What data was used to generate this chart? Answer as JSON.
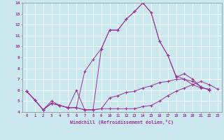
{
  "xlabel": "Windchill (Refroidissement éolien,°C)",
  "background_color": "#cce8ef",
  "line_color": "#993399",
  "xlim": [
    -0.5,
    23.5
  ],
  "ylim": [
    4,
    14
  ],
  "yticks": [
    4,
    5,
    6,
    7,
    8,
    9,
    10,
    11,
    12,
    13,
    14
  ],
  "xticks": [
    0,
    1,
    2,
    3,
    4,
    5,
    6,
    7,
    8,
    9,
    10,
    11,
    12,
    13,
    14,
    15,
    16,
    17,
    18,
    19,
    20,
    21,
    22,
    23
  ],
  "series": [
    {
      "x": [
        0,
        1,
        2,
        3,
        4,
        5,
        6,
        7,
        8,
        9,
        10,
        11,
        12,
        13,
        14,
        15,
        16,
        17,
        18,
        19,
        20,
        21,
        22,
        23
      ],
      "y": [
        5.9,
        5.1,
        4.2,
        4.8,
        4.6,
        4.4,
        4.4,
        4.2,
        4.2,
        4.3,
        4.3,
        4.3,
        4.3,
        4.3,
        4.5,
        4.6,
        5.0,
        5.5,
        5.9,
        6.2,
        6.5,
        6.8,
        6.5,
        6.1
      ]
    },
    {
      "x": [
        0,
        1,
        2,
        3,
        4,
        5,
        6,
        7,
        8,
        9,
        10,
        11,
        12,
        13,
        14,
        15,
        16,
        17,
        18,
        19,
        20,
        21,
        22
      ],
      "y": [
        5.9,
        5.1,
        4.2,
        4.8,
        4.6,
        4.4,
        4.4,
        4.2,
        4.2,
        4.3,
        5.3,
        5.5,
        5.8,
        5.9,
        6.2,
        6.4,
        6.7,
        6.8,
        7.0,
        7.0,
        6.8,
        6.3,
        6.0
      ]
    },
    {
      "x": [
        0,
        1,
        2,
        3,
        4,
        5,
        6,
        7,
        8,
        9,
        10,
        11,
        12,
        13,
        14,
        15,
        16,
        17,
        18,
        19,
        20,
        21,
        22
      ],
      "y": [
        5.9,
        5.1,
        4.2,
        5.0,
        4.6,
        4.4,
        4.4,
        7.7,
        8.8,
        9.8,
        11.5,
        11.5,
        12.5,
        13.2,
        14.0,
        13.1,
        10.5,
        9.2,
        7.2,
        7.5,
        7.0,
        6.3,
        6.0
      ]
    },
    {
      "x": [
        0,
        1,
        2,
        3,
        4,
        5,
        6,
        7,
        8,
        9,
        10,
        11,
        12,
        13,
        14,
        15,
        16,
        17,
        18,
        19,
        20,
        21,
        22
      ],
      "y": [
        5.9,
        5.1,
        4.2,
        4.8,
        4.6,
        4.4,
        6.0,
        4.2,
        4.2,
        9.8,
        11.5,
        11.5,
        12.5,
        13.2,
        14.0,
        13.1,
        10.5,
        9.2,
        7.3,
        7.0,
        6.5,
        6.2,
        6.1
      ]
    }
  ]
}
